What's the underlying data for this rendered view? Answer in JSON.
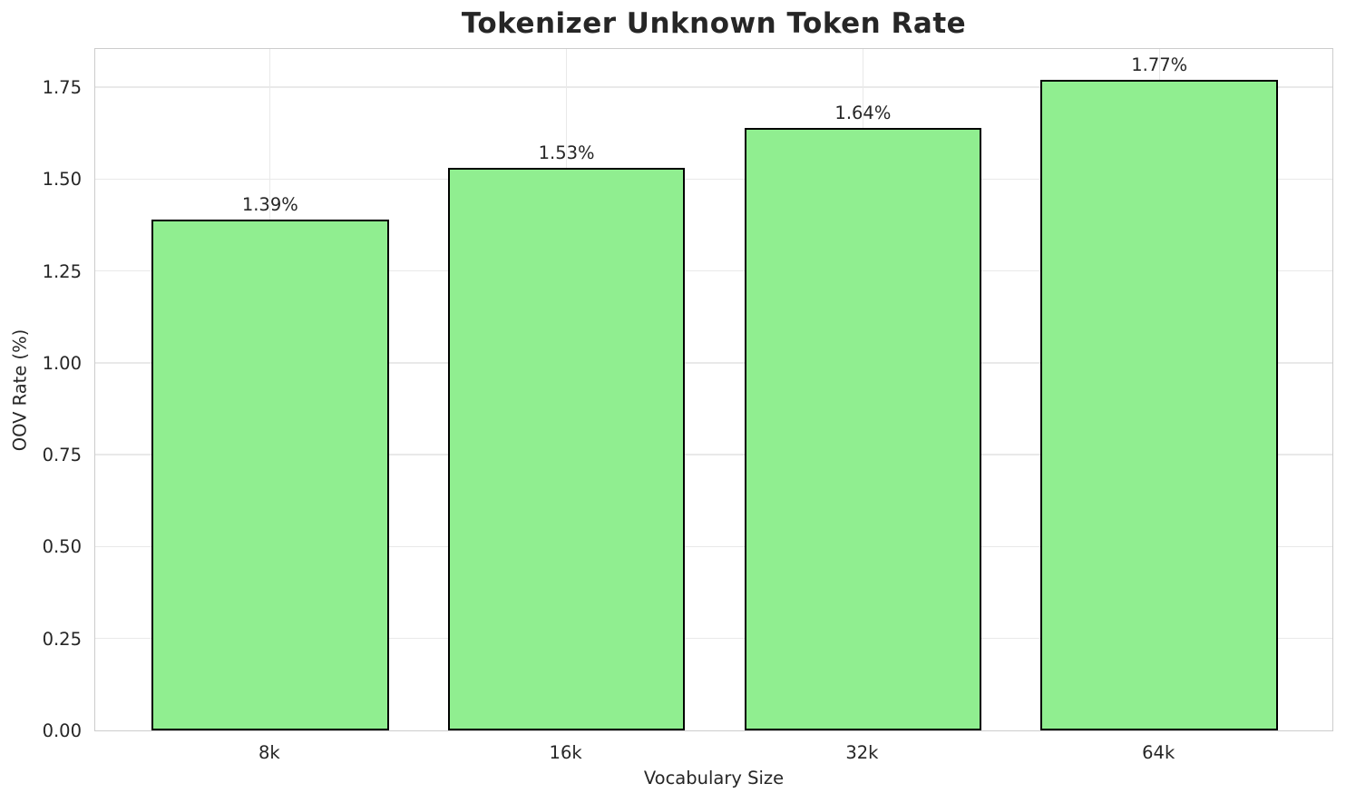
{
  "chart_data": {
    "type": "bar",
    "title": "Tokenizer Unknown Token Rate",
    "xlabel": "Vocabulary Size",
    "ylabel": "OOV Rate (%)",
    "categories": [
      "8k",
      "16k",
      "32k",
      "64k"
    ],
    "values": [
      1.39,
      1.53,
      1.64,
      1.77
    ],
    "bar_labels": [
      "1.39%",
      "1.53%",
      "1.64%",
      "1.77%"
    ],
    "ylim": [
      0,
      1.8585
    ],
    "yticks": [
      0,
      0.25,
      0.5,
      0.75,
      1,
      1.25,
      1.5,
      1.75
    ],
    "ytick_labels": [
      "0.00",
      "0.25",
      "0.50",
      "0.75",
      "1.00",
      "1.25",
      "1.50",
      "1.75"
    ],
    "grid": true,
    "legend": false,
    "bar_width_ratio": 0.8,
    "x_margin": 0.59,
    "colors": {
      "bar_fill": "#90EE90",
      "bar_edge": "#000000",
      "grid": "#e9e9e9",
      "spine": "#cccccc",
      "text": "#262626",
      "background": "#ffffff"
    }
  }
}
